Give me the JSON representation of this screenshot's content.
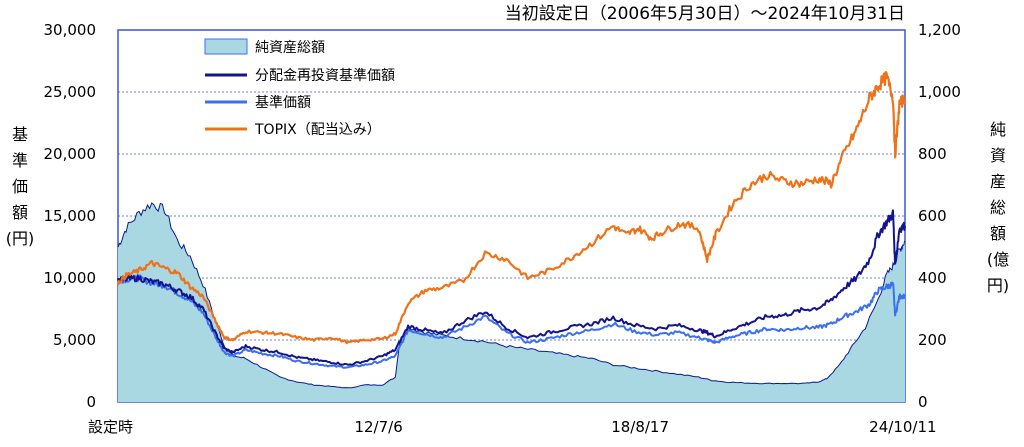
{
  "chart_data": {
    "type": "line",
    "title": "当初設定日（2006年5月30日）～2024年10月31日",
    "ylabel_left": [
      "基",
      "準",
      "価",
      "額",
      "(円)"
    ],
    "ylabel_right": [
      "純",
      "資",
      "産",
      "総",
      "額",
      "(億",
      "円)"
    ],
    "left_axis": {
      "min": 0,
      "max": 30000,
      "ticks": [
        "0",
        "5,000",
        "10,000",
        "15,000",
        "20,000",
        "25,000",
        "30,000"
      ],
      "tick_values": [
        0,
        5000,
        10000,
        15000,
        20000,
        25000,
        30000
      ]
    },
    "right_axis": {
      "min": 0,
      "max": 1200,
      "ticks": [
        "0",
        "200",
        "400",
        "600",
        "800",
        "1,000",
        "1,200"
      ],
      "tick_values": [
        0,
        200,
        400,
        600,
        800,
        1000,
        1200
      ]
    },
    "x_axis": {
      "min": 2006.41,
      "max": 2024.83,
      "ticks": [
        {
          "label": "設定時",
          "x": 2006.41
        },
        {
          "label": "12/7/6",
          "x": 2012.51
        },
        {
          "label": "18/8/17",
          "x": 2018.63
        },
        {
          "label": "24/10/11",
          "x": 2024.78
        }
      ]
    },
    "grid": true,
    "legend_position": "top-left",
    "series": [
      {
        "name": "純資産総額",
        "type": "area",
        "axis": "right",
        "color": "#a9d8e3",
        "stroke": "#0a1a8f",
        "x": [
          2006.41,
          2006.6,
          2006.9,
          2007.2,
          2007.5,
          2007.8,
          2008.1,
          2008.4,
          2008.7,
          2008.9,
          2009.1,
          2009.4,
          2009.8,
          2010.2,
          2010.6,
          2011.0,
          2011.4,
          2011.8,
          2012.2,
          2012.6,
          2012.9,
          2013.0,
          2013.2,
          2013.6,
          2014.0,
          2014.5,
          2015.0,
          2015.5,
          2016.0,
          2016.5,
          2017.0,
          2017.5,
          2018.0,
          2018.5,
          2019.0,
          2019.5,
          2020.0,
          2020.3,
          2020.6,
          2021.0,
          2021.5,
          2022.0,
          2022.5,
          2022.8,
          2023.0,
          2023.3,
          2023.6,
          2023.9,
          2024.2,
          2024.4,
          2024.55,
          2024.65,
          2024.75,
          2024.83
        ],
        "values": [
          500,
          560,
          610,
          640,
          620,
          520,
          470,
          380,
          260,
          180,
          150,
          140,
          110,
          80,
          65,
          55,
          50,
          45,
          55,
          55,
          80,
          190,
          240,
          225,
          215,
          205,
          195,
          180,
          170,
          160,
          150,
          140,
          120,
          110,
          100,
          90,
          80,
          70,
          65,
          62,
          60,
          60,
          60,
          65,
          75,
          120,
          180,
          240,
          330,
          410,
          440,
          480,
          500,
          520
        ]
      },
      {
        "name": "分配金再投資基準価額",
        "type": "line",
        "axis": "left",
        "color": "#14148c",
        "x": [
          2006.41,
          2006.6,
          2006.9,
          2007.2,
          2007.5,
          2007.8,
          2008.1,
          2008.4,
          2008.7,
          2008.9,
          2009.1,
          2009.4,
          2009.8,
          2010.2,
          2010.6,
          2011.0,
          2011.4,
          2011.8,
          2012.2,
          2012.6,
          2012.9,
          2013.2,
          2013.6,
          2014.0,
          2014.5,
          2015.0,
          2015.5,
          2016.0,
          2016.5,
          2017.0,
          2017.5,
          2018.0,
          2018.5,
          2019.0,
          2019.5,
          2020.0,
          2020.2,
          2020.4,
          2020.8,
          2021.2,
          2021.6,
          2022.0,
          2022.4,
          2022.8,
          2023.1,
          2023.4,
          2023.7,
          2024.0,
          2024.2,
          2024.4,
          2024.55,
          2024.6,
          2024.7,
          2024.83
        ],
        "values": [
          9800,
          9900,
          10000,
          9700,
          9500,
          9000,
          8500,
          7500,
          5500,
          4300,
          4000,
          4500,
          4200,
          4000,
          3600,
          3400,
          3200,
          3000,
          3300,
          3700,
          4200,
          6100,
          5800,
          5500,
          6500,
          7300,
          6000,
          5200,
          5600,
          6000,
          6300,
          6800,
          6200,
          5900,
          6200,
          5800,
          5600,
          5300,
          5900,
          6400,
          6900,
          7000,
          7400,
          7600,
          8200,
          9200,
          10000,
          11500,
          13500,
          14500,
          15200,
          11000,
          14000,
          14200
        ]
      },
      {
        "name": "基準価額",
        "type": "line",
        "axis": "left",
        "color": "#3b6ff0",
        "x": [
          2006.41,
          2006.6,
          2006.9,
          2007.2,
          2007.5,
          2007.8,
          2008.1,
          2008.4,
          2008.7,
          2008.9,
          2009.1,
          2009.4,
          2009.8,
          2010.2,
          2010.6,
          2011.0,
          2011.4,
          2011.8,
          2012.2,
          2012.6,
          2012.9,
          2013.2,
          2013.6,
          2014.0,
          2014.5,
          2015.0,
          2015.5,
          2016.0,
          2016.5,
          2017.0,
          2017.5,
          2018.0,
          2018.5,
          2019.0,
          2019.5,
          2020.0,
          2020.2,
          2020.4,
          2020.8,
          2021.2,
          2021.6,
          2022.0,
          2022.4,
          2022.8,
          2023.1,
          2023.4,
          2023.7,
          2024.0,
          2024.2,
          2024.4,
          2024.55,
          2024.6,
          2024.7,
          2024.83
        ],
        "values": [
          9800,
          9900,
          10000,
          9600,
          9400,
          8800,
          8200,
          7200,
          5200,
          4000,
          3700,
          4200,
          3900,
          3700,
          3300,
          3100,
          2900,
          2800,
          3000,
          3300,
          3700,
          5800,
          5500,
          5200,
          6000,
          6900,
          5600,
          4800,
          5100,
          5500,
          5800,
          6300,
          5700,
          5400,
          5600,
          5200,
          5000,
          4800,
          5300,
          5600,
          5900,
          5800,
          6000,
          6000,
          6300,
          6900,
          7300,
          7900,
          9000,
          9300,
          9500,
          7000,
          8500,
          8600
        ]
      },
      {
        "name": "TOPIX（配当込み）",
        "type": "line",
        "axis": "left",
        "color": "#f07218",
        "x": [
          2006.41,
          2006.6,
          2006.9,
          2007.2,
          2007.5,
          2007.8,
          2008.1,
          2008.4,
          2008.7,
          2008.9,
          2009.1,
          2009.4,
          2009.8,
          2010.2,
          2010.6,
          2011.0,
          2011.4,
          2011.8,
          2012.2,
          2012.6,
          2012.9,
          2013.2,
          2013.6,
          2014.0,
          2014.5,
          2015.0,
          2015.5,
          2016.0,
          2016.5,
          2017.0,
          2017.5,
          2018.0,
          2018.3,
          2018.6,
          2018.9,
          2019.2,
          2019.6,
          2020.0,
          2020.2,
          2020.4,
          2020.8,
          2021.2,
          2021.6,
          2022.0,
          2022.4,
          2022.8,
          2023.1,
          2023.4,
          2023.7,
          2024.0,
          2024.2,
          2024.4,
          2024.55,
          2024.6,
          2024.7,
          2024.83
        ],
        "values": [
          9600,
          10200,
          10600,
          11200,
          10800,
          10400,
          9300,
          8500,
          6500,
          5200,
          5000,
          5700,
          5600,
          5500,
          5200,
          5000,
          5200,
          4800,
          5000,
          5100,
          5500,
          8000,
          9000,
          9200,
          9800,
          12000,
          11500,
          10000,
          10600,
          11600,
          12800,
          14200,
          13500,
          14000,
          13200,
          13800,
          14400,
          14000,
          11500,
          13500,
          16000,
          17500,
          18300,
          17800,
          17600,
          18000,
          17600,
          20000,
          22000,
          24500,
          25500,
          26200,
          24500,
          20000,
          24000,
          24500
        ]
      }
    ]
  }
}
